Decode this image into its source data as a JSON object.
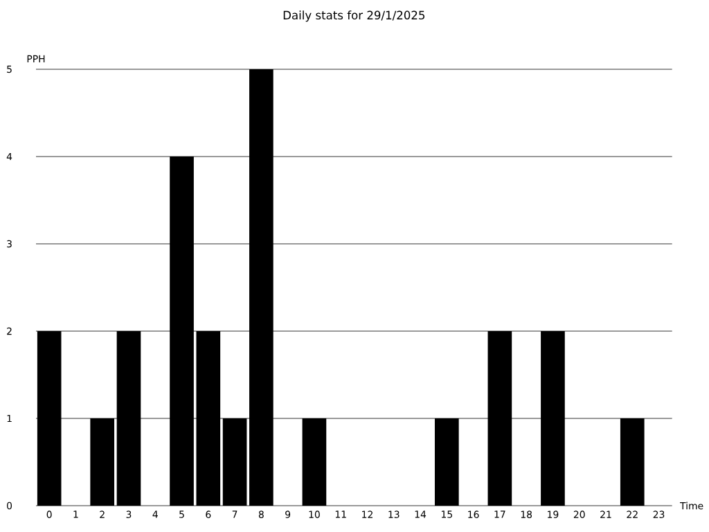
{
  "chart_data": {
    "type": "bar",
    "title": "Daily stats for 29/1/2025",
    "xlabel": "Time",
    "ylabel": "PPH",
    "categories": [
      "0",
      "1",
      "2",
      "3",
      "4",
      "5",
      "6",
      "7",
      "8",
      "9",
      "10",
      "11",
      "12",
      "13",
      "14",
      "15",
      "16",
      "17",
      "18",
      "19",
      "20",
      "21",
      "22",
      "23"
    ],
    "values": [
      2,
      0,
      1,
      2,
      0,
      4,
      2,
      1,
      5,
      0,
      1,
      0,
      0,
      0,
      0,
      1,
      0,
      2,
      0,
      2,
      0,
      0,
      1,
      0
    ],
    "color": "#000000",
    "ylim": [
      0,
      5
    ],
    "yticks": [
      0,
      1,
      2,
      3,
      4,
      5
    ],
    "grid": "y"
  }
}
